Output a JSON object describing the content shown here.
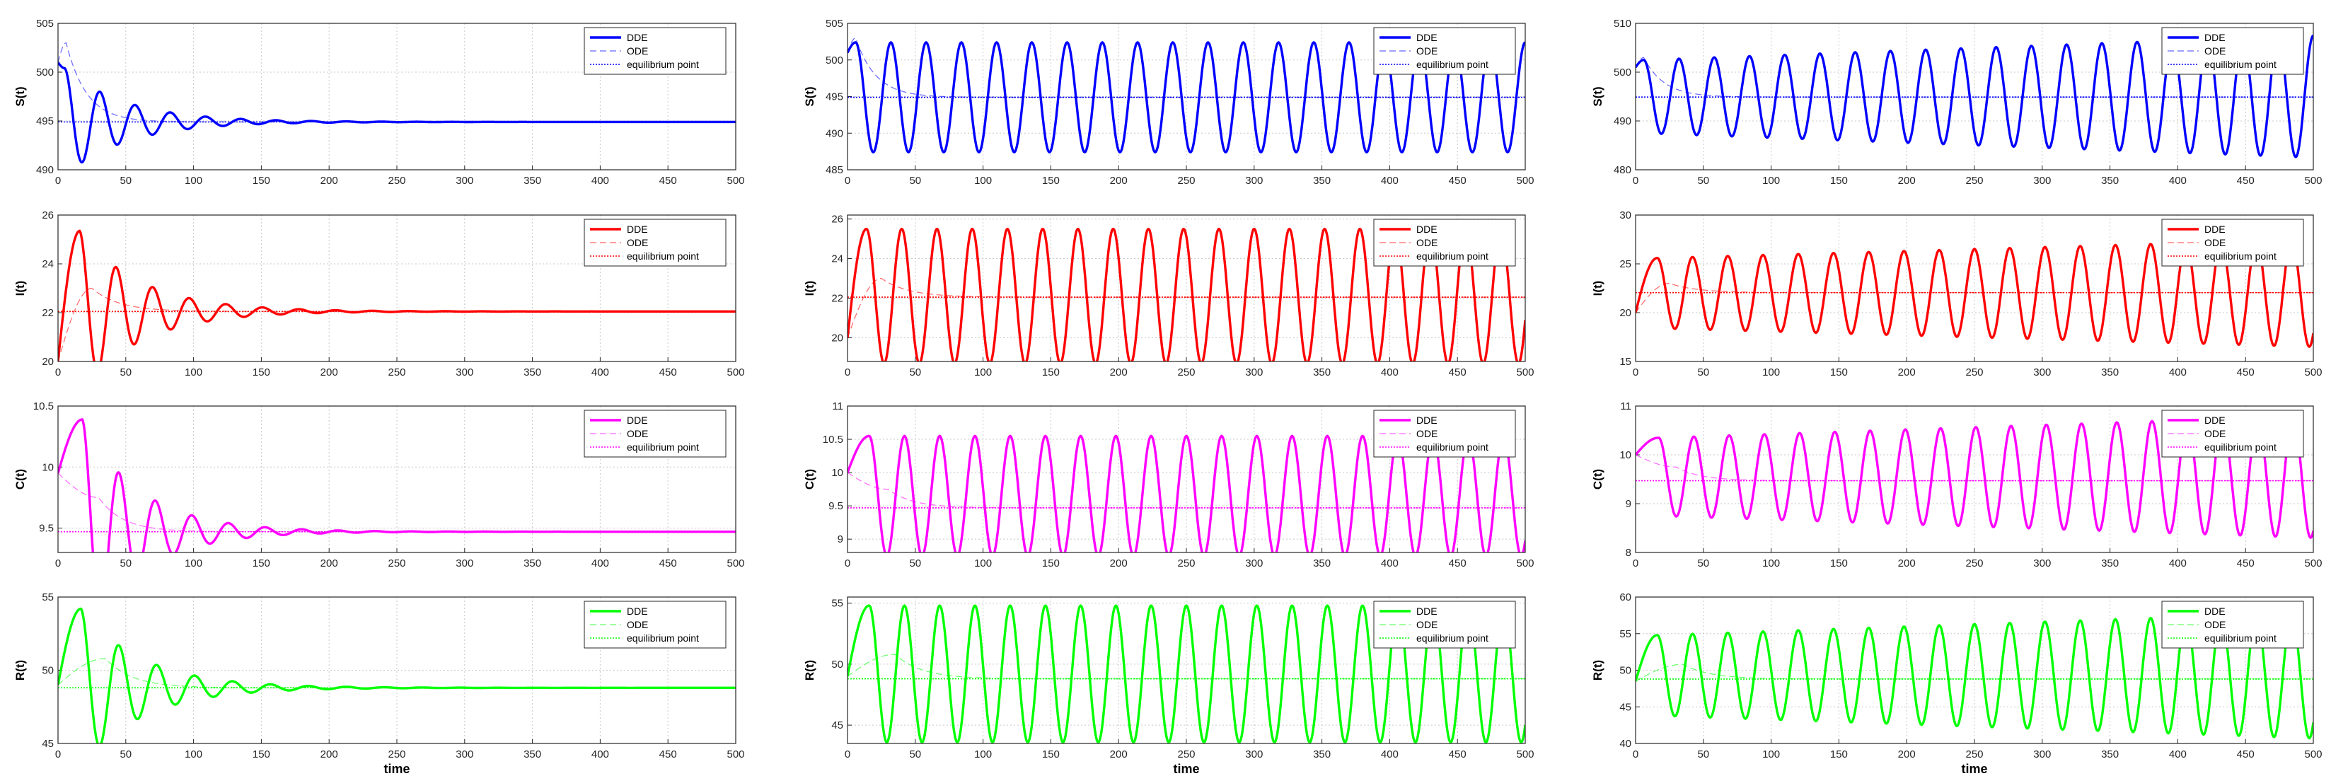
{
  "figure": {
    "xlabel": "time",
    "legend_labels": [
      "DDE",
      "ODE",
      "equilibrium point"
    ],
    "colors": {
      "S": "#0000ff",
      "I": "#ff0000",
      "C": "#ff00ff",
      "R": "#00ff00"
    }
  },
  "chart_data": [
    {
      "type": "line",
      "ylabel": "S(t)",
      "color": "#0000ff",
      "xlim": [
        0,
        500
      ],
      "ylim": [
        490,
        505
      ],
      "yticks": [
        490,
        495,
        500,
        505
      ],
      "xticks": [
        0,
        50,
        100,
        150,
        200,
        250,
        300,
        350,
        400,
        450,
        500
      ],
      "series": [
        {
          "name": "DDE",
          "kind": "damped",
          "initial": 501,
          "equilibrium": 494.9,
          "amplitude": 5.5,
          "period": 26,
          "decay": 45,
          "peak_t": 5
        },
        {
          "name": "ODE",
          "kind": "relax",
          "initial": 501,
          "equilibrium": 494.9,
          "peak": 503,
          "rise_t": 6,
          "decay": 15
        },
        {
          "name": "equilibrium point",
          "value": 494.9
        }
      ]
    },
    {
      "type": "line",
      "ylabel": "S(t)",
      "color": "#0000ff",
      "xlim": [
        0,
        500
      ],
      "ylim": [
        485,
        505
      ],
      "yticks": [
        485,
        490,
        495,
        500,
        505
      ],
      "xticks": [
        0,
        50,
        100,
        150,
        200,
        250,
        300,
        350,
        400,
        450,
        500
      ],
      "series": [
        {
          "name": "DDE",
          "kind": "sustained",
          "initial": 501,
          "equilibrium": 494.9,
          "amplitude": 7.5,
          "amp_end": 7.5,
          "period": 26,
          "peak_t": 6
        },
        {
          "name": "ODE",
          "kind": "relax",
          "initial": 501,
          "equilibrium": 494.9,
          "peak": 503,
          "rise_t": 6,
          "decay": 15
        },
        {
          "name": "equilibrium point",
          "value": 494.9
        }
      ]
    },
    {
      "type": "line",
      "ylabel": "S(t)",
      "color": "#0000ff",
      "xlim": [
        0,
        500
      ],
      "ylim": [
        480,
        510
      ],
      "yticks": [
        480,
        490,
        500,
        510
      ],
      "xticks": [
        0,
        50,
        100,
        150,
        200,
        250,
        300,
        350,
        400,
        450,
        500
      ],
      "series": [
        {
          "name": "DDE",
          "kind": "sustained",
          "initial": 501,
          "equilibrium": 495,
          "amplitude": 7.5,
          "amp_end": 12.5,
          "period": 26,
          "peak_t": 6
        },
        {
          "name": "ODE",
          "kind": "relax",
          "initial": 501,
          "equilibrium": 494.9,
          "peak": 503,
          "rise_t": 6,
          "decay": 15
        },
        {
          "name": "equilibrium point",
          "value": 494.9
        }
      ]
    },
    {
      "type": "line",
      "ylabel": "I(t)",
      "color": "#ff0000",
      "xlim": [
        0,
        500
      ],
      "ylim": [
        20,
        26
      ],
      "yticks": [
        20,
        22,
        24,
        26
      ],
      "xticks": [
        0,
        50,
        100,
        150,
        200,
        250,
        300,
        350,
        400,
        450,
        500
      ],
      "series": [
        {
          "name": "DDE",
          "kind": "damped",
          "initial": 20,
          "equilibrium": 22.05,
          "amplitude": 3.3,
          "period": 27,
          "decay": 45,
          "peak_t": 16
        },
        {
          "name": "ODE",
          "kind": "relax",
          "initial": 20,
          "equilibrium": 22.05,
          "peak": 23,
          "rise_t": 25,
          "decay": 20
        },
        {
          "name": "equilibrium point",
          "value": 22.05
        }
      ]
    },
    {
      "type": "line",
      "ylabel": "I(t)",
      "color": "#ff0000",
      "xlim": [
        0,
        500
      ],
      "ylim": [
        18.8,
        26.2
      ],
      "yticks": [
        20,
        22,
        24,
        26
      ],
      "xticks": [
        0,
        50,
        100,
        150,
        200,
        250,
        300,
        350,
        400,
        450,
        500
      ],
      "series": [
        {
          "name": "DDE",
          "kind": "sustained",
          "initial": 20,
          "equilibrium": 22.1,
          "amplitude": 3.4,
          "amp_end": 3.4,
          "period": 26,
          "peak_t": 14
        },
        {
          "name": "ODE",
          "kind": "relax",
          "initial": 20,
          "equilibrium": 22.05,
          "peak": 23,
          "rise_t": 25,
          "decay": 20
        },
        {
          "name": "equilibrium point",
          "value": 22.05
        }
      ]
    },
    {
      "type": "line",
      "ylabel": "I(t)",
      "color": "#ff0000",
      "xlim": [
        0,
        500
      ],
      "ylim": [
        15,
        30
      ],
      "yticks": [
        15,
        20,
        25,
        30
      ],
      "xticks": [
        0,
        50,
        100,
        150,
        200,
        250,
        300,
        350,
        400,
        450,
        500
      ],
      "series": [
        {
          "name": "DDE",
          "kind": "sustained",
          "initial": 20,
          "equilibrium": 22,
          "amplitude": 3.6,
          "amp_end": 5.5,
          "period": 26,
          "peak_t": 16
        },
        {
          "name": "ODE",
          "kind": "relax",
          "initial": 20,
          "equilibrium": 22.05,
          "peak": 23,
          "rise_t": 25,
          "decay": 20
        },
        {
          "name": "equilibrium point",
          "value": 22.05
        }
      ]
    },
    {
      "type": "line",
      "ylabel": "C(t)",
      "color": "#ff00ff",
      "xlim": [
        0,
        500
      ],
      "ylim": [
        9.3,
        10.5
      ],
      "yticks": [
        9.5,
        10,
        10.5
      ],
      "xticks": [
        0,
        50,
        100,
        150,
        200,
        250,
        300,
        350,
        400,
        450,
        500
      ],
      "series": [
        {
          "name": "DDE",
          "kind": "damped",
          "initial": 9.95,
          "equilibrium": 9.47,
          "amplitude": 0.92,
          "period": 27,
          "decay": 42,
          "peak_t": 18
        },
        {
          "name": "ODE",
          "kind": "relax",
          "initial": 9.95,
          "equilibrium": 9.47,
          "peak": 9.75,
          "rise_t": 30,
          "decay": 18
        },
        {
          "name": "equilibrium point",
          "value": 9.47
        }
      ]
    },
    {
      "type": "line",
      "ylabel": "C(t)",
      "color": "#ff00ff",
      "xlim": [
        0,
        500
      ],
      "ylim": [
        8.8,
        11
      ],
      "yticks": [
        9,
        9.5,
        10,
        10.5,
        11
      ],
      "xticks": [
        0,
        50,
        100,
        150,
        200,
        250,
        300,
        350,
        400,
        450,
        500
      ],
      "series": [
        {
          "name": "DDE",
          "kind": "sustained",
          "initial": 10,
          "equilibrium": 9.65,
          "amplitude": 0.9,
          "amp_end": 0.9,
          "period": 26,
          "peak_t": 16
        },
        {
          "name": "ODE",
          "kind": "relax",
          "initial": 10,
          "equilibrium": 9.47,
          "peak": 9.75,
          "rise_t": 30,
          "decay": 18
        },
        {
          "name": "equilibrium point",
          "value": 9.47
        }
      ]
    },
    {
      "type": "line",
      "ylabel": "C(t)",
      "color": "#ff00ff",
      "xlim": [
        0,
        500
      ],
      "ylim": [
        8,
        11
      ],
      "yticks": [
        8,
        9,
        10,
        11
      ],
      "xticks": [
        0,
        50,
        100,
        150,
        200,
        250,
        300,
        350,
        400,
        450,
        500
      ],
      "series": [
        {
          "name": "DDE",
          "kind": "sustained",
          "initial": 10,
          "equilibrium": 9.55,
          "amplitude": 0.8,
          "amp_end": 1.25,
          "period": 26,
          "peak_t": 17
        },
        {
          "name": "ODE",
          "kind": "relax",
          "initial": 10,
          "equilibrium": 9.47,
          "peak": 9.75,
          "rise_t": 30,
          "decay": 18
        },
        {
          "name": "equilibrium point",
          "value": 9.47
        }
      ]
    },
    {
      "type": "line",
      "ylabel": "R(t)",
      "color": "#00ff00",
      "xlim": [
        0,
        500
      ],
      "ylim": [
        45,
        55
      ],
      "yticks": [
        45,
        50,
        55
      ],
      "xticks": [
        0,
        50,
        100,
        150,
        200,
        250,
        300,
        350,
        400,
        450,
        500
      ],
      "series": [
        {
          "name": "DDE",
          "kind": "damped",
          "initial": 49,
          "equilibrium": 48.8,
          "amplitude": 5.4,
          "period": 28,
          "decay": 45,
          "peak_t": 17
        },
        {
          "name": "ODE",
          "kind": "relax",
          "initial": 49,
          "equilibrium": 48.8,
          "peak": 50.8,
          "rise_t": 35,
          "decay": 20
        },
        {
          "name": "equilibrium point",
          "value": 48.8
        }
      ]
    },
    {
      "type": "line",
      "ylabel": "R(t)",
      "color": "#00ff00",
      "xlim": [
        0,
        500
      ],
      "ylim": [
        43.5,
        55.5
      ],
      "yticks": [
        45,
        50,
        55
      ],
      "xticks": [
        0,
        50,
        100,
        150,
        200,
        250,
        300,
        350,
        400,
        450,
        500
      ],
      "series": [
        {
          "name": "DDE",
          "kind": "sustained",
          "initial": 49,
          "equilibrium": 49.2,
          "amplitude": 5.6,
          "amp_end": 5.6,
          "period": 26,
          "peak_t": 16
        },
        {
          "name": "ODE",
          "kind": "relax",
          "initial": 49,
          "equilibrium": 48.8,
          "peak": 50.8,
          "rise_t": 35,
          "decay": 20
        },
        {
          "name": "equilibrium point",
          "value": 48.8
        }
      ]
    },
    {
      "type": "line",
      "ylabel": "R(t)",
      "color": "#00ff00",
      "xlim": [
        0,
        500
      ],
      "ylim": [
        40,
        60
      ],
      "yticks": [
        40,
        45,
        50,
        55,
        60
      ],
      "xticks": [
        0,
        50,
        100,
        150,
        200,
        250,
        300,
        350,
        400,
        450,
        500
      ],
      "series": [
        {
          "name": "DDE",
          "kind": "sustained",
          "initial": 48.5,
          "equilibrium": 49.3,
          "amplitude": 5.5,
          "amp_end": 8.6,
          "period": 26,
          "peak_t": 16
        },
        {
          "name": "ODE",
          "kind": "relax",
          "initial": 48.5,
          "equilibrium": 48.8,
          "peak": 50.8,
          "rise_t": 35,
          "decay": 20
        },
        {
          "name": "equilibrium point",
          "value": 48.8
        }
      ]
    }
  ]
}
